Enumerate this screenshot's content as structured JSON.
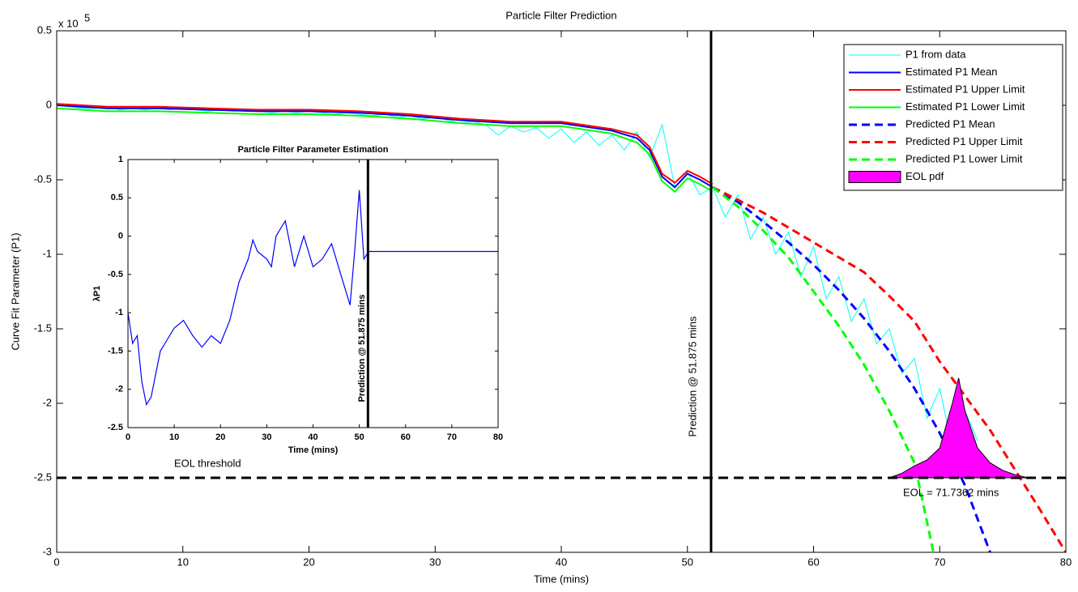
{
  "chart_data": [
    {
      "type": "line",
      "title": "Particle Filter Prediction",
      "xlabel": "Time (mins)",
      "ylabel": "Curve Fit Parameter (P1)",
      "multiplier": {
        "base": "x 10",
        "power": "5"
      },
      "xlim": [
        0,
        80
      ],
      "ylim": [
        -3,
        0.5
      ],
      "xticks": [
        0,
        10,
        20,
        30,
        40,
        50,
        60,
        70,
        80
      ],
      "yticks": [
        -3,
        -2.5,
        -2,
        -1.5,
        -1,
        -0.5,
        0,
        0.5
      ],
      "legend": "northeast",
      "prediction_time": 51.875,
      "prediction_label": "Prediction @ 51.875 mins",
      "threshold": -2.5,
      "threshold_label": "EOL threshold",
      "eol_label": "EOL = 71.7362 mins",
      "series": [
        {
          "name": "P1 from data",
          "color": "#00ffff",
          "style": "solid",
          "width": 1,
          "x": [
            0,
            1,
            2,
            3,
            4,
            5,
            6,
            7,
            8,
            9,
            10,
            11,
            12,
            13,
            14,
            15,
            16,
            17,
            18,
            19,
            20,
            21,
            22,
            23,
            24,
            25,
            26,
            27,
            28,
            29,
            30,
            31,
            32,
            33,
            34,
            35,
            36,
            37,
            38,
            39,
            40,
            41,
            42,
            43,
            44,
            45,
            46,
            47,
            48,
            49,
            50,
            51,
            52,
            53,
            54,
            55,
            56,
            57,
            58,
            59,
            60,
            61,
            62,
            63,
            64,
            65,
            66,
            67,
            68,
            69,
            70,
            71,
            72,
            73
          ],
          "values": [
            0,
            -0.01,
            -0.02,
            -0.02,
            -0.01,
            -0.03,
            -0.02,
            -0.03,
            -0.02,
            -0.03,
            -0.02,
            -0.03,
            -0.04,
            -0.03,
            -0.04,
            -0.03,
            -0.04,
            -0.05,
            -0.04,
            -0.05,
            -0.04,
            -0.05,
            -0.06,
            -0.05,
            -0.06,
            -0.07,
            -0.06,
            -0.08,
            -0.07,
            -0.09,
            -0.08,
            -0.1,
            -0.12,
            -0.11,
            -0.13,
            -0.2,
            -0.14,
            -0.18,
            -0.15,
            -0.22,
            -0.16,
            -0.25,
            -0.18,
            -0.27,
            -0.2,
            -0.3,
            -0.18,
            -0.35,
            -0.13,
            -0.55,
            -0.45,
            -0.6,
            -0.55,
            -0.75,
            -0.6,
            -0.9,
            -0.75,
            -1.0,
            -0.85,
            -1.15,
            -0.95,
            -1.3,
            -1.15,
            -1.45,
            -1.3,
            -1.6,
            -1.5,
            -1.8,
            -1.7,
            -2.1,
            -1.9,
            -2.3,
            -2.05,
            -2.25
          ]
        },
        {
          "name": "Estimated P1 Mean",
          "color": "#0000ff",
          "style": "solid",
          "width": 2,
          "x": [
            0,
            4,
            8,
            12,
            16,
            20,
            24,
            28,
            32,
            36,
            40,
            44,
            46,
            47,
            48,
            49,
            50,
            51,
            52
          ],
          "values": [
            0,
            -0.02,
            -0.02,
            -0.03,
            -0.04,
            -0.04,
            -0.05,
            -0.07,
            -0.1,
            -0.12,
            -0.12,
            -0.17,
            -0.22,
            -0.3,
            -0.48,
            -0.55,
            -0.46,
            -0.5,
            -0.55
          ]
        },
        {
          "name": "Estimated P1 Upper Limit",
          "color": "#ff0000",
          "style": "solid",
          "width": 2,
          "x": [
            0,
            4,
            8,
            12,
            16,
            20,
            24,
            28,
            32,
            36,
            40,
            44,
            46,
            47,
            48,
            49,
            50,
            51,
            52
          ],
          "values": [
            0.01,
            -0.01,
            -0.01,
            -0.02,
            -0.03,
            -0.03,
            -0.04,
            -0.06,
            -0.09,
            -0.11,
            -0.11,
            -0.16,
            -0.2,
            -0.28,
            -0.46,
            -0.52,
            -0.44,
            -0.48,
            -0.53
          ]
        },
        {
          "name": "Estimated P1 Lower Limit",
          "color": "#00ff00",
          "style": "solid",
          "width": 2,
          "x": [
            0,
            4,
            8,
            12,
            16,
            20,
            24,
            28,
            32,
            36,
            40,
            44,
            46,
            47,
            48,
            49,
            50,
            51,
            52
          ],
          "values": [
            -0.02,
            -0.04,
            -0.04,
            -0.05,
            -0.06,
            -0.06,
            -0.07,
            -0.09,
            -0.12,
            -0.14,
            -0.14,
            -0.19,
            -0.25,
            -0.33,
            -0.51,
            -0.58,
            -0.49,
            -0.53,
            -0.58
          ]
        },
        {
          "name": "Predicted P1 Mean",
          "color": "#0000ff",
          "style": "dash",
          "width": 3,
          "x": [
            52,
            54,
            56,
            58,
            60,
            62,
            64,
            66,
            68,
            70,
            72,
            74
          ],
          "values": [
            -0.55,
            -0.65,
            -0.78,
            -0.92,
            -1.07,
            -1.24,
            -1.43,
            -1.65,
            -1.9,
            -2.2,
            -2.55,
            -3.0
          ]
        },
        {
          "name": "Predicted P1 Upper Limit",
          "color": "#ff0000",
          "style": "dash",
          "width": 3,
          "x": [
            52,
            56,
            60,
            64,
            66,
            68,
            70,
            72,
            74,
            76,
            78,
            80
          ],
          "values": [
            -0.55,
            -0.72,
            -0.92,
            -1.12,
            -1.28,
            -1.45,
            -1.72,
            -1.95,
            -2.18,
            -2.45,
            -2.72,
            -3.0
          ]
        },
        {
          "name": "Predicted P1 Lower Limit",
          "color": "#00ff00",
          "style": "dash",
          "width": 3,
          "x": [
            52,
            54,
            56,
            58,
            60,
            62,
            64,
            66,
            68,
            69.5
          ],
          "values": [
            -0.55,
            -0.68,
            -0.84,
            -1.02,
            -1.25,
            -1.48,
            -1.74,
            -2.05,
            -2.4,
            -3.0
          ]
        },
        {
          "name": "EOL pdf",
          "color": "#ff00ff",
          "style": "area",
          "width": 1,
          "x": [
            66,
            67,
            68,
            69,
            70,
            71,
            71.5,
            72,
            73,
            74,
            75,
            76,
            77
          ],
          "values": [
            -2.5,
            -2.47,
            -2.42,
            -2.38,
            -2.3,
            -2.0,
            -1.83,
            -2.05,
            -2.3,
            -2.4,
            -2.45,
            -2.48,
            -2.5
          ]
        }
      ]
    },
    {
      "type": "line",
      "title": "Particle Filter Parameter Estimation",
      "xlabel": "Time (mins)",
      "ylabel": "λP1",
      "xlim": [
        0,
        80
      ],
      "ylim": [
        -2.5,
        1
      ],
      "xticks": [
        0,
        10,
        20,
        30,
        40,
        50,
        60,
        70,
        80
      ],
      "yticks": [
        -2.5,
        -2,
        -1.5,
        -1,
        -0.5,
        0,
        0.5,
        1
      ],
      "prediction_time": 51.875,
      "prediction_label": "Prediction @ 51.875 mins",
      "series": [
        {
          "color": "#0000ff",
          "style": "solid",
          "width": 1.2,
          "x": [
            0,
            1,
            2,
            3,
            4,
            5,
            6,
            7,
            8,
            10,
            12,
            14,
            16,
            18,
            20,
            22,
            24,
            26,
            27,
            28,
            30,
            31,
            32,
            34,
            36,
            38,
            40,
            42,
            44,
            46,
            48,
            49,
            50,
            51,
            52,
            80
          ],
          "values": [
            -1.0,
            -1.4,
            -1.3,
            -1.9,
            -2.2,
            -2.1,
            -1.8,
            -1.5,
            -1.4,
            -1.2,
            -1.1,
            -1.3,
            -1.45,
            -1.3,
            -1.4,
            -1.1,
            -0.6,
            -0.3,
            -0.05,
            -0.2,
            -0.3,
            -0.4,
            0.0,
            0.2,
            -0.4,
            0.0,
            -0.4,
            -0.3,
            -0.1,
            -0.5,
            -0.9,
            -0.2,
            0.6,
            -0.3,
            -0.2,
            -0.2
          ]
        }
      ]
    }
  ]
}
